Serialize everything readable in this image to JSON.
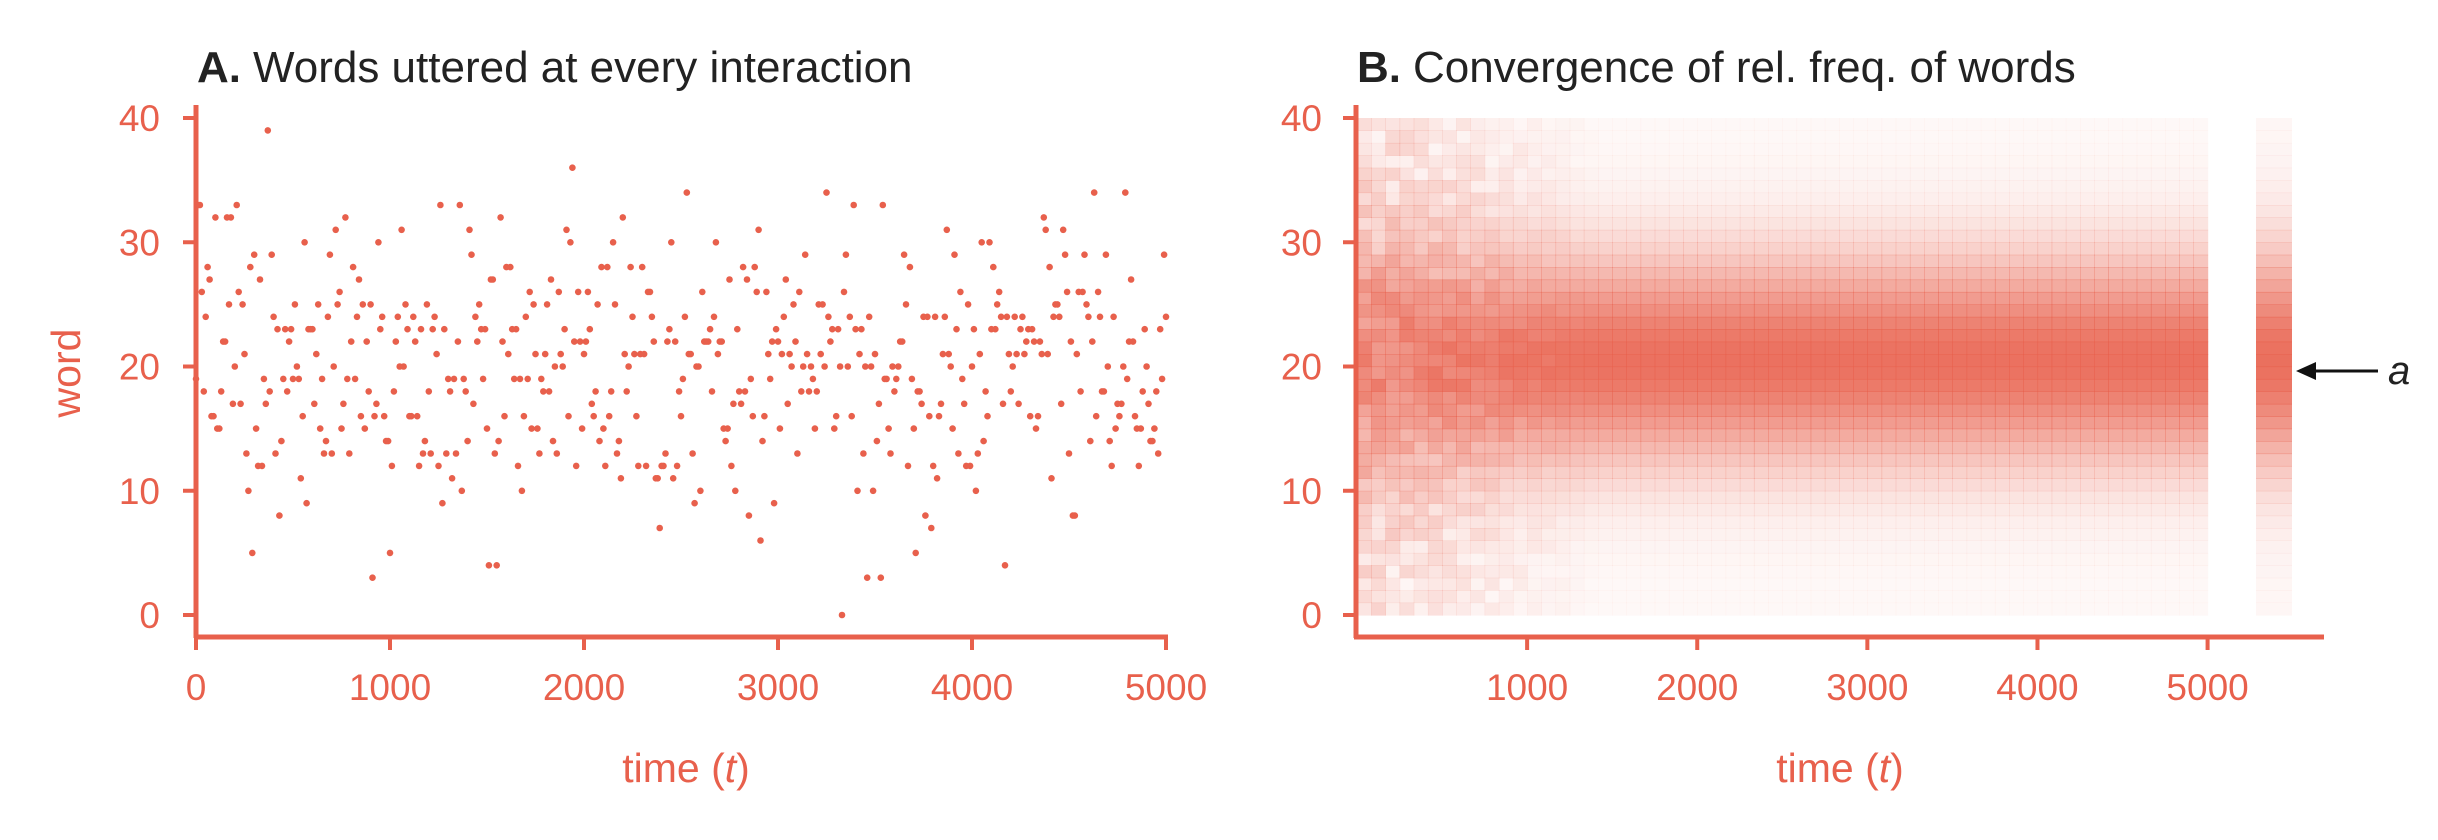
{
  "colors": {
    "accent": "#e8604c",
    "text": "#222222",
    "background": "#ffffff"
  },
  "chart_data": [
    {
      "type": "scatter",
      "panel_letter": "A.",
      "title": "Words uttered at every interaction",
      "xlabel_pre": "time (",
      "xlabel_var": "t",
      "xlabel_post": ")",
      "ylabel": "word",
      "xlim": [
        0,
        5000
      ],
      "ylim": [
        0,
        40
      ],
      "xticks": [
        "0",
        "1000",
        "2000",
        "3000",
        "4000",
        "5000"
      ],
      "yticks": [
        "0",
        "10",
        "20",
        "30",
        "40"
      ],
      "grid": false,
      "description_of_data": "one dot per interaction t (0-5000) at the index of the word uttered",
      "word_distribution": {
        "center": 20,
        "spread": 6.5,
        "min": 0,
        "max": 40
      },
      "num_interactions": 5000
    },
    {
      "type": "heatmap",
      "panel_letter": "B.",
      "title": "Convergence of rel. freq. of words",
      "xlabel_pre": "time (",
      "xlabel_var": "t",
      "xlabel_post": ")",
      "xlim": [
        0,
        5000
      ],
      "ylim": [
        0,
        40
      ],
      "xticks": [
        "1000",
        "2000",
        "3000",
        "4000",
        "5000"
      ],
      "yticks": [
        "0",
        "10",
        "20",
        "30",
        "40"
      ],
      "grid": false,
      "center_word": 20,
      "reference_column_label": "a",
      "annotation_text": "a"
    }
  ]
}
